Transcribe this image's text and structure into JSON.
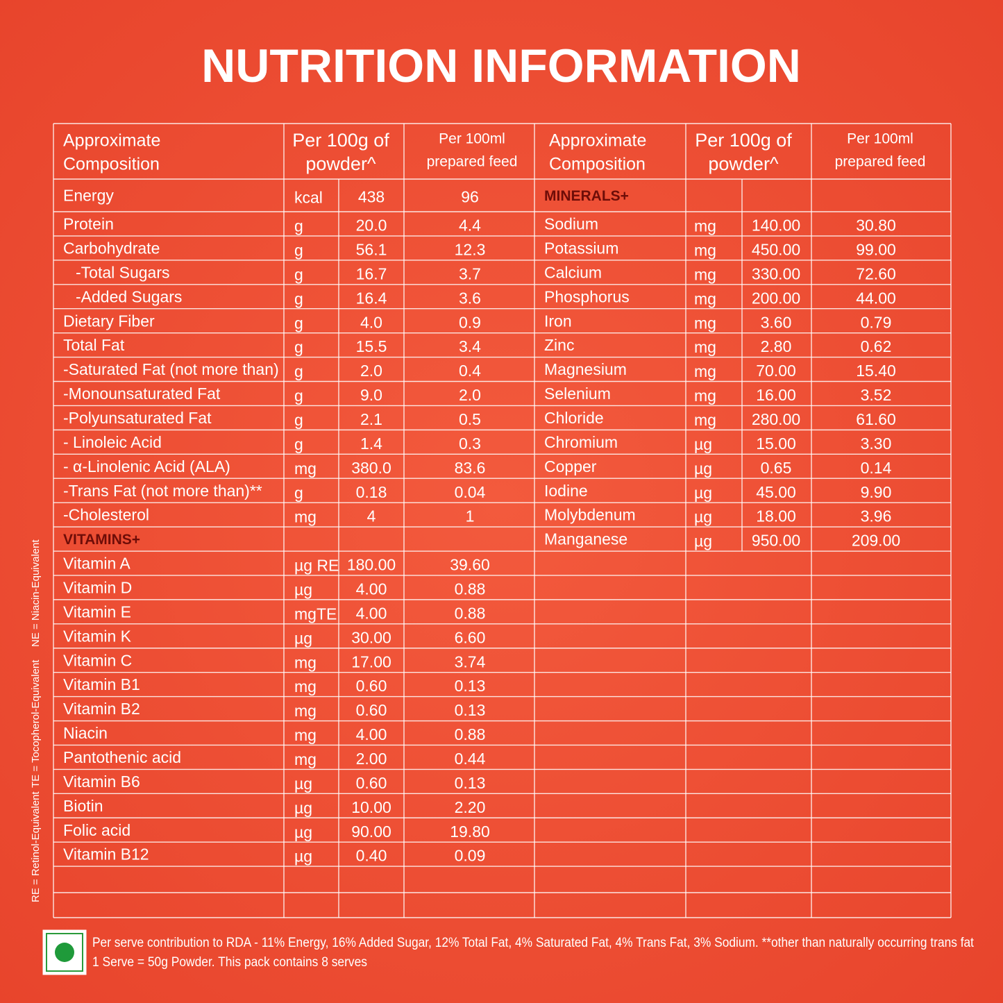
{
  "title": "NUTRITION INFORMATION",
  "table": {
    "left": {
      "headers": [
        [
          "Approximate",
          "Composition"
        ],
        [
          "Per 100g of",
          "powder^"
        ],
        [
          "Per 100ml",
          "prepared feed"
        ]
      ],
      "rows": [
        [
          "Energy",
          "kcal",
          "438",
          "96"
        ],
        [
          "Protein",
          "g",
          "20.0",
          "4.4"
        ],
        [
          "Carbohydrate",
          "g",
          "56.1",
          "12.3"
        ],
        [
          "-Total Sugars",
          "g",
          "16.7",
          "3.7"
        ],
        [
          "-Added Sugars",
          "g",
          "16.4",
          "3.6"
        ],
        [
          "Dietary Fiber",
          "g",
          "4.0",
          "0.9"
        ],
        [
          "Total Fat",
          "g",
          "15.5",
          "3.4"
        ],
        [
          "-Saturated Fat (not more than)",
          "g",
          "2.0",
          "0.4"
        ],
        [
          "-Monounsaturated Fat",
          "g",
          "9.0",
          "2.0"
        ],
        [
          "-Polyunsaturated Fat",
          "g",
          "2.1",
          "0.5"
        ],
        [
          "- Linoleic Acid",
          "g",
          "1.4",
          "0.3"
        ],
        [
          "- α-Linolenic Acid (ALA)",
          "mg",
          "380.0",
          "83.6"
        ],
        [
          "-Trans Fat (not more than)**",
          "g",
          "0.18",
          "0.04"
        ],
        [
          "-Cholesterol",
          "mg",
          "4",
          "1"
        ],
        [
          "VITAMINS+"
        ],
        [
          "Vitamin A",
          "µg RE",
          "180.00",
          "39.60"
        ],
        [
          "Vitamin D",
          "µg",
          "4.00",
          "0.88"
        ],
        [
          "Vitamin E",
          "mgTE",
          "4.00",
          "0.88"
        ],
        [
          "Vitamin K",
          "µg",
          "30.00",
          "6.60"
        ],
        [
          "Vitamin C",
          "mg",
          "17.00",
          "3.74"
        ],
        [
          "Vitamin B1",
          "mg",
          "0.60",
          "0.13"
        ],
        [
          "Vitamin B2",
          "mg",
          "0.60",
          "0.13"
        ],
        [
          "Niacin",
          "mg",
          "4.00",
          "0.88"
        ],
        [
          "Pantothenic acid",
          "mg",
          "2.00",
          "0.44"
        ],
        [
          "Vitamin B6",
          "µg",
          "0.60",
          "0.13"
        ],
        [
          "Biotin",
          "µg",
          "10.00",
          "2.20"
        ],
        [
          "Folic acid",
          "µg",
          "90.00",
          "19.80"
        ],
        [
          "Vitamin B12",
          "µg",
          "0.40",
          "0.09"
        ]
      ]
    },
    "right": {
      "headers": [
        [
          "Approximate",
          "Composition"
        ],
        [
          "Per 100g of",
          "powder^"
        ],
        [
          "Per 100ml",
          "prepared feed"
        ]
      ],
      "rows": [
        [
          "MINERALS+"
        ],
        [
          "Sodium",
          "mg",
          "140.00",
          "30.80"
        ],
        [
          "Potassium",
          "mg",
          "450.00",
          "99.00"
        ],
        [
          "Calcium",
          "mg",
          "330.00",
          "72.60"
        ],
        [
          "Phosphorus",
          "mg",
          "200.00",
          "44.00"
        ],
        [
          "Iron",
          "mg",
          "3.60",
          "0.79"
        ],
        [
          "Zinc",
          "mg",
          "2.80",
          "0.62"
        ],
        [
          "Magnesium",
          "mg",
          "70.00",
          "15.40"
        ],
        [
          "Selenium",
          "mg",
          "16.00",
          "3.52"
        ],
        [
          "Chloride",
          "mg",
          "280.00",
          "61.60"
        ],
        [
          "Chromium",
          "µg",
          "15.00",
          "3.30"
        ],
        [
          "Copper",
          "µg",
          "0.65",
          "0.14"
        ],
        [
          "Iodine",
          "µg",
          "45.00",
          "9.90"
        ],
        [
          "Molybdenum",
          "µg",
          "18.00",
          "3.96"
        ],
        [
          "Manganese",
          "µg",
          "950.00",
          "209.00"
        ]
      ]
    }
  },
  "side_notes": [
    "RE = Retinol-Equivalent",
    "TE = Tocopherol-Equivalent",
    "NE = Niacin-Equivalent"
  ],
  "footer": [
    "Per serve contribution to RDA - 11% Energy, 16% Added Sugar, 12% Total Fat, 4% Saturated Fat, 4% Trans Fat, 3% Sodium. **other than naturally occurring trans fat",
    "1 Serve = 50g Powder. This pack contains 8 serves"
  ]
}
